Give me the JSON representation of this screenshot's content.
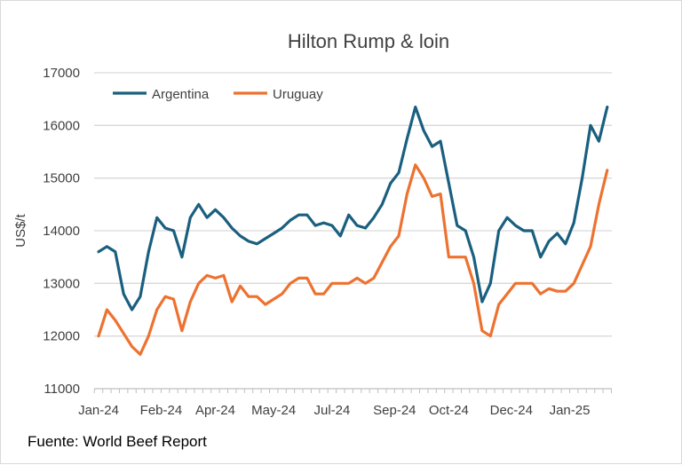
{
  "chart_data": {
    "type": "line",
    "title": "Hilton Rump & loin",
    "xlabel": "",
    "ylabel": "US$/t",
    "ylim": [
      11000,
      17000
    ],
    "yticks": [
      11000,
      12000,
      13000,
      14000,
      15000,
      16000,
      17000
    ],
    "xtick_labels": [
      "Jan-24",
      "Feb-24",
      "Apr-24",
      "May-24",
      "Jul-24",
      "Sep-24",
      "Oct-24",
      "Dec-24",
      "Jan-25"
    ],
    "xtick_positions": [
      0,
      7.5,
      14,
      21,
      28,
      35.5,
      42,
      49.5,
      56.5
    ],
    "grid": true,
    "legend": "top-left",
    "series": [
      {
        "name": "Argentina",
        "color": "#1a5f7f",
        "values": [
          13600,
          13700,
          13600,
          12800,
          12500,
          12750,
          13600,
          14250,
          14050,
          14000,
          13500,
          14250,
          14500,
          14250,
          14400,
          14250,
          14050,
          13900,
          13800,
          13750,
          13850,
          13950,
          14050,
          14200,
          14300,
          14300,
          14100,
          14150,
          14100,
          13900,
          14300,
          14100,
          14050,
          14250,
          14500,
          14900,
          15100,
          15750,
          16350,
          15900,
          15600,
          15700,
          14900,
          14100,
          14000,
          13500,
          12650,
          13000,
          14000,
          14250,
          14100,
          14000,
          14000,
          13500,
          13800,
          13950,
          13750,
          14150,
          15000,
          16000,
          15700,
          16350
        ]
      },
      {
        "name": "Uruguay",
        "color": "#ed7230",
        "values": [
          12000,
          12500,
          12300,
          12050,
          11800,
          11650,
          12000,
          12500,
          12750,
          12700,
          12100,
          12650,
          13000,
          13150,
          13100,
          13150,
          12650,
          12950,
          12750,
          12750,
          12600,
          12700,
          12800,
          13000,
          13100,
          13100,
          12800,
          12800,
          13000,
          13000,
          13000,
          13100,
          13000,
          13100,
          13400,
          13700,
          13900,
          14700,
          15250,
          15000,
          14650,
          14700,
          13500,
          13500,
          13500,
          13000,
          12100,
          12000,
          12600,
          12800,
          13000,
          13000,
          13000,
          12800,
          12900,
          12850,
          12850,
          13000,
          13350,
          13700,
          14500,
          15150
        ]
      }
    ]
  },
  "source": "Fuente: World Beef Report"
}
